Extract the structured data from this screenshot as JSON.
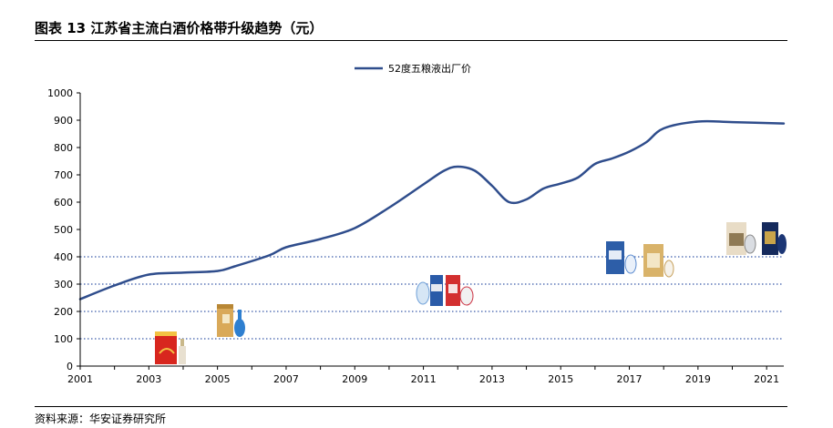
{
  "header": {
    "title": "图表 13 江苏省主流白酒价格带升级趋势（元）"
  },
  "footer": {
    "source": "资料来源：华安证券研究所"
  },
  "colors": {
    "line": "#2F4D8C",
    "dotted": "#3A5BAA",
    "axis": "#000000"
  },
  "chart_data": {
    "type": "line",
    "title": "江苏省主流白酒价格带升级趋势（元）",
    "xlabel": "",
    "ylabel": "",
    "xlim": [
      2001,
      2021.5
    ],
    "ylim": [
      0,
      1000
    ],
    "xticks": [
      "2001",
      "2003",
      "2005",
      "2007",
      "2009",
      "2011",
      "2013",
      "2015",
      "2017",
      "2019",
      "2021"
    ],
    "yticks": [
      "0",
      "100",
      "200",
      "300",
      "400",
      "500",
      "600",
      "700",
      "800",
      "900",
      "1000"
    ],
    "dotted_lines": [
      100,
      200,
      300,
      400
    ],
    "legend": "top-center",
    "series": [
      {
        "name": "52度五粮液出厂价",
        "x": [
          2001,
          2002,
          2003,
          2004,
          2005,
          2005.5,
          2006.5,
          2007,
          2008,
          2009,
          2010,
          2011,
          2011.6,
          2012,
          2012.5,
          2013,
          2013.5,
          2014,
          2014.5,
          2015,
          2015.5,
          2016,
          2016.5,
          2017,
          2017.5,
          2018,
          2019,
          2020,
          2021.5
        ],
        "values": [
          245,
          295,
          335,
          342,
          348,
          365,
          405,
          435,
          465,
          505,
          580,
          665,
          715,
          730,
          715,
          660,
          600,
          610,
          650,
          668,
          690,
          740,
          760,
          785,
          820,
          870,
          895,
          893,
          888
        ]
      }
    ],
    "product_images": [
      "product-2003-bottle",
      "product-2005-bottle",
      "product-2011-bottles",
      "product-2017-bottles",
      "product-2020-bottles"
    ]
  }
}
